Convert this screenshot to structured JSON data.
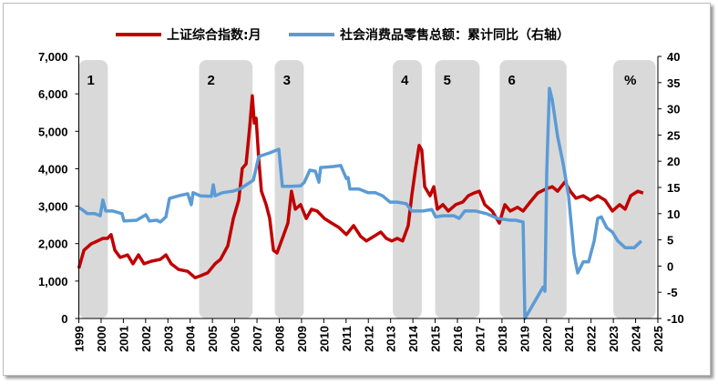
{
  "chart_data": {
    "type": "line",
    "title": "",
    "x_range": [
      1999,
      2025
    ],
    "x_ticks": [
      "1999",
      "2000",
      "2001",
      "2002",
      "2003",
      "2004",
      "2005",
      "2006",
      "2007",
      "2008",
      "2009",
      "2010",
      "2011",
      "2012",
      "2013",
      "2014",
      "2015",
      "2016",
      "2017",
      "2018",
      "2019",
      "2020",
      "2021",
      "2022",
      "2023",
      "2024",
      "2025"
    ],
    "y_left": {
      "range": [
        0,
        7000
      ],
      "ticks": [
        "0",
        "1,000",
        "2,000",
        "3,000",
        "4,000",
        "5,000",
        "6,000",
        "7,000"
      ],
      "values": [
        0,
        1000,
        2000,
        3000,
        4000,
        5000,
        6000,
        7000
      ]
    },
    "y_right": {
      "range": [
        -10,
        40
      ],
      "ticks": [
        "-10",
        "-5",
        "0",
        "5",
        "10",
        "15",
        "20",
        "25",
        "30",
        "35",
        "40"
      ],
      "values": [
        -10,
        -5,
        0,
        5,
        10,
        15,
        20,
        25,
        30,
        35,
        40
      ]
    },
    "legend_position": "top",
    "shaded_regions": [
      {
        "label": "1",
        "start": 1999.0,
        "end": 2000.3
      },
      {
        "label": "2",
        "start": 2004.4,
        "end": 2006.8
      },
      {
        "label": "3",
        "start": 2007.8,
        "end": 2009.1
      },
      {
        "label": "4",
        "start": 2013.1,
        "end": 2014.4
      },
      {
        "label": "5",
        "start": 2015.0,
        "end": 2017.0
      },
      {
        "label": "6",
        "start": 2017.9,
        "end": 2020.9
      },
      {
        "label": "%",
        "start": 2023.0,
        "end": 2024.9
      }
    ],
    "series": [
      {
        "name": "上证综合指数:月",
        "axis": "left",
        "color": "#C00000",
        "x": [
          1999.0,
          1999.23,
          1999.55,
          1999.84,
          2000.08,
          2000.29,
          2000.45,
          2000.62,
          2000.86,
          2001.19,
          2001.43,
          2001.68,
          2001.93,
          2002.25,
          2002.66,
          2002.91,
          2003.15,
          2003.48,
          2003.89,
          2004.22,
          2004.46,
          2004.79,
          2005.12,
          2005.36,
          2005.69,
          2005.94,
          2006.18,
          2006.34,
          2006.51,
          2006.67,
          2006.79,
          2006.88,
          2006.96,
          2007.08,
          2007.2,
          2007.41,
          2007.57,
          2007.74,
          2007.9,
          2008.14,
          2008.39,
          2008.55,
          2008.72,
          2008.96,
          2009.21,
          2009.45,
          2009.7,
          2010.03,
          2010.35,
          2010.68,
          2011.01,
          2011.34,
          2011.66,
          2011.91,
          2012.24,
          2012.56,
          2012.81,
          2013.05,
          2013.3,
          2013.54,
          2013.79,
          2013.95,
          2014.12,
          2014.28,
          2014.4,
          2014.53,
          2014.77,
          2014.94,
          2015.1,
          2015.35,
          2015.59,
          2015.92,
          2016.24,
          2016.49,
          2016.74,
          2016.98,
          2017.23,
          2017.56,
          2017.88,
          2018.13,
          2018.37,
          2018.7,
          2018.95,
          2019.27,
          2019.6,
          2019.93,
          2020.26,
          2020.5,
          2020.83,
          2021.07,
          2021.32,
          2021.65,
          2021.97,
          2022.3,
          2022.63,
          2022.96,
          2023.28,
          2023.53,
          2023.78,
          2024.1,
          2024.34
        ],
        "y": [
          1340,
          1820,
          1990,
          2070,
          2140,
          2140,
          2240,
          1820,
          1630,
          1700,
          1460,
          1700,
          1460,
          1530,
          1580,
          1700,
          1460,
          1310,
          1260,
          1090,
          1140,
          1220,
          1460,
          1580,
          1940,
          2670,
          3160,
          4010,
          4130,
          5100,
          5950,
          5220,
          5350,
          4250,
          3400,
          3040,
          2670,
          1820,
          1750,
          2140,
          2550,
          3400,
          2920,
          3040,
          2670,
          2920,
          2870,
          2670,
          2550,
          2430,
          2240,
          2480,
          2190,
          2070,
          2190,
          2310,
          2140,
          2070,
          2140,
          2070,
          2480,
          3280,
          4010,
          4620,
          4500,
          3520,
          3280,
          3520,
          2920,
          3040,
          2870,
          3040,
          3110,
          3280,
          3350,
          3400,
          3040,
          2870,
          2550,
          3040,
          2870,
          2970,
          2870,
          3110,
          3350,
          3450,
          3520,
          3400,
          3650,
          3400,
          3210,
          3280,
          3160,
          3280,
          3160,
          2870,
          3040,
          2920,
          3280,
          3400,
          3350
        ]
      },
      {
        "name": "社会消费品零售总额：累计同比（右轴）",
        "axis": "right",
        "color": "#5B9BD5",
        "x": [
          1999.0,
          1999.14,
          1999.39,
          1999.72,
          1999.96,
          2000.08,
          2000.21,
          2000.53,
          2000.94,
          2001.03,
          2001.6,
          2002.01,
          2002.17,
          2002.5,
          2002.66,
          2002.91,
          2003.07,
          2003.48,
          2003.89,
          2004.05,
          2004.13,
          2004.46,
          2004.95,
          2005.04,
          2005.12,
          2005.44,
          2005.94,
          2006.26,
          2006.59,
          2006.84,
          2007.08,
          2007.57,
          2007.98,
          2008.14,
          2008.55,
          2008.96,
          2009.13,
          2009.37,
          2009.62,
          2009.78,
          2009.86,
          2010.44,
          2010.76,
          2011.01,
          2011.09,
          2011.17,
          2011.58,
          2011.99,
          2012.32,
          2012.64,
          2012.97,
          2013.3,
          2013.71,
          2013.95,
          2014.45,
          2014.85,
          2015.02,
          2015.35,
          2015.84,
          2016.08,
          2016.33,
          2016.82,
          2017.31,
          2017.8,
          2018.37,
          2018.62,
          2018.95,
          2019.03,
          2019.85,
          2019.93,
          2020.01,
          2020.13,
          2020.26,
          2020.5,
          2020.75,
          2020.99,
          2021.24,
          2021.4,
          2021.65,
          2021.89,
          2022.14,
          2022.3,
          2022.46,
          2022.71,
          2022.96,
          2023.2,
          2023.53,
          2023.94,
          2024.26
        ],
        "y": [
          11.2,
          10.8,
          10.0,
          10.0,
          9.6,
          12.6,
          10.5,
          10.5,
          10.0,
          8.6,
          8.75,
          9.8,
          8.6,
          8.75,
          8.4,
          9.4,
          12.9,
          13.4,
          13.8,
          11.7,
          14.0,
          13.4,
          13.3,
          15.5,
          13.4,
          14.0,
          14.3,
          14.8,
          15.7,
          16.4,
          20.9,
          21.6,
          22.3,
          15.2,
          15.2,
          15.3,
          16.0,
          18.3,
          18.1,
          16.0,
          18.8,
          19.0,
          19.2,
          16.7,
          16.9,
          14.7,
          14.7,
          14.0,
          14.0,
          13.4,
          12.2,
          12.2,
          11.9,
          10.5,
          10.5,
          10.8,
          9.4,
          9.6,
          9.6,
          9.1,
          10.5,
          10.5,
          10.0,
          9.1,
          8.75,
          8.75,
          8.4,
          -10.0,
          -4.0,
          -4.8,
          17.8,
          33.9,
          31.7,
          24.7,
          19.5,
          13.4,
          2.2,
          -1.3,
          0.8,
          0.8,
          4.8,
          9.1,
          9.4,
          7.3,
          6.5,
          4.8,
          3.5,
          3.5,
          4.8
        ]
      }
    ]
  }
}
